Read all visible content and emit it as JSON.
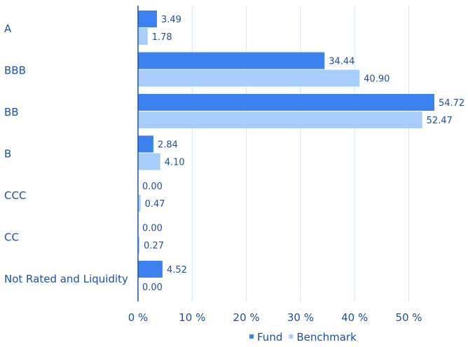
{
  "chart_data": {
    "type": "bar",
    "orientation": "horizontal",
    "categories": [
      "A",
      "BBB",
      "BB",
      "B",
      "CCC",
      "CC",
      "Not Rated and Liquidity"
    ],
    "series": [
      {
        "name": "Fund",
        "color": "#3b82f0",
        "values": [
          3.49,
          34.44,
          54.72,
          2.84,
          0.0,
          0.0,
          4.52
        ],
        "labels": [
          "3.49",
          "34.44",
          "54.72",
          "2.84",
          "0.00",
          "0.00",
          "4.52"
        ]
      },
      {
        "name": "Benchmark",
        "color": "#a8cdfb",
        "values": [
          1.78,
          40.9,
          52.47,
          4.1,
          0.47,
          0.27,
          0.0
        ],
        "labels": [
          "1.78",
          "40.90",
          "52.47",
          "4.10",
          "0.47",
          "0.27",
          "0.00"
        ]
      }
    ],
    "xlim": [
      0,
      60
    ],
    "xticks": [
      {
        "value": 0,
        "label": "0 %"
      },
      {
        "value": 10,
        "label": "10 %"
      },
      {
        "value": 20,
        "label": "20 %"
      },
      {
        "value": 30,
        "label": "30 %"
      },
      {
        "value": 40,
        "label": "40 %"
      },
      {
        "value": 50,
        "label": "50 %"
      }
    ],
    "grid": true,
    "legend_position": "bottom-right",
    "colors": {
      "axis": "#1f4ea3",
      "grid": "#d6e6f8",
      "text": "#1f4ea3"
    }
  }
}
